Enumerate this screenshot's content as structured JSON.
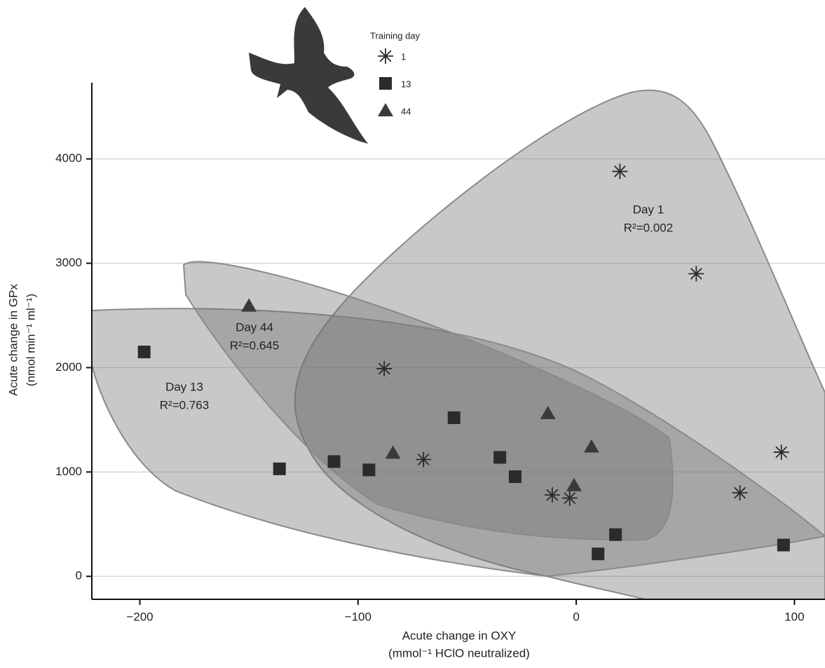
{
  "chart_data": {
    "type": "scatter",
    "xlabel": [
      "Acute change in OXY",
      "(mmol⁻¹ HClO neutralized)"
    ],
    "ylabel": [
      "Acute change in GPx",
      "(nmol min⁻¹ ml⁻¹)"
    ],
    "xlim": [
      -222,
      114
    ],
    "ylim": [
      -220,
      4730
    ],
    "xticks": [
      {
        "value": -200,
        "label": "−200"
      },
      {
        "value": -100,
        "label": "−100"
      },
      0,
      100
    ],
    "yticks": [
      0,
      1000,
      2000,
      3000,
      4000
    ],
    "grid": true,
    "legend_title": "Training day",
    "series": [
      {
        "name": "1",
        "marker": "asterisk",
        "color": "#2b2b2b",
        "x": [
          20,
          55,
          94,
          75,
          -88,
          -70,
          -11,
          -3
        ],
        "values": [
          3880,
          2900,
          1190,
          800,
          1990,
          1120,
          780,
          750
        ]
      },
      {
        "name": "13",
        "marker": "square",
        "color": "#2b2b2b",
        "x": [
          -198,
          -136,
          -111,
          -95,
          -56,
          -35,
          -28,
          10,
          18,
          95
        ],
        "values": [
          2150,
          1030,
          1100,
          1020,
          1520,
          1140,
          955,
          215,
          400,
          300
        ]
      },
      {
        "name": "44",
        "marker": "triangle",
        "color": "#3a3a3a",
        "x": [
          -150,
          -84,
          -13,
          7,
          -1
        ],
        "values": [
          2590,
          1180,
          1560,
          1240,
          870
        ]
      }
    ],
    "annotations": [
      {
        "text": "Day 1",
        "stat": "R²=0.002"
      },
      {
        "text": "Day 44",
        "stat": "R²=0.645"
      },
      {
        "text": "Day 13",
        "stat": "R²=0.763"
      }
    ]
  }
}
